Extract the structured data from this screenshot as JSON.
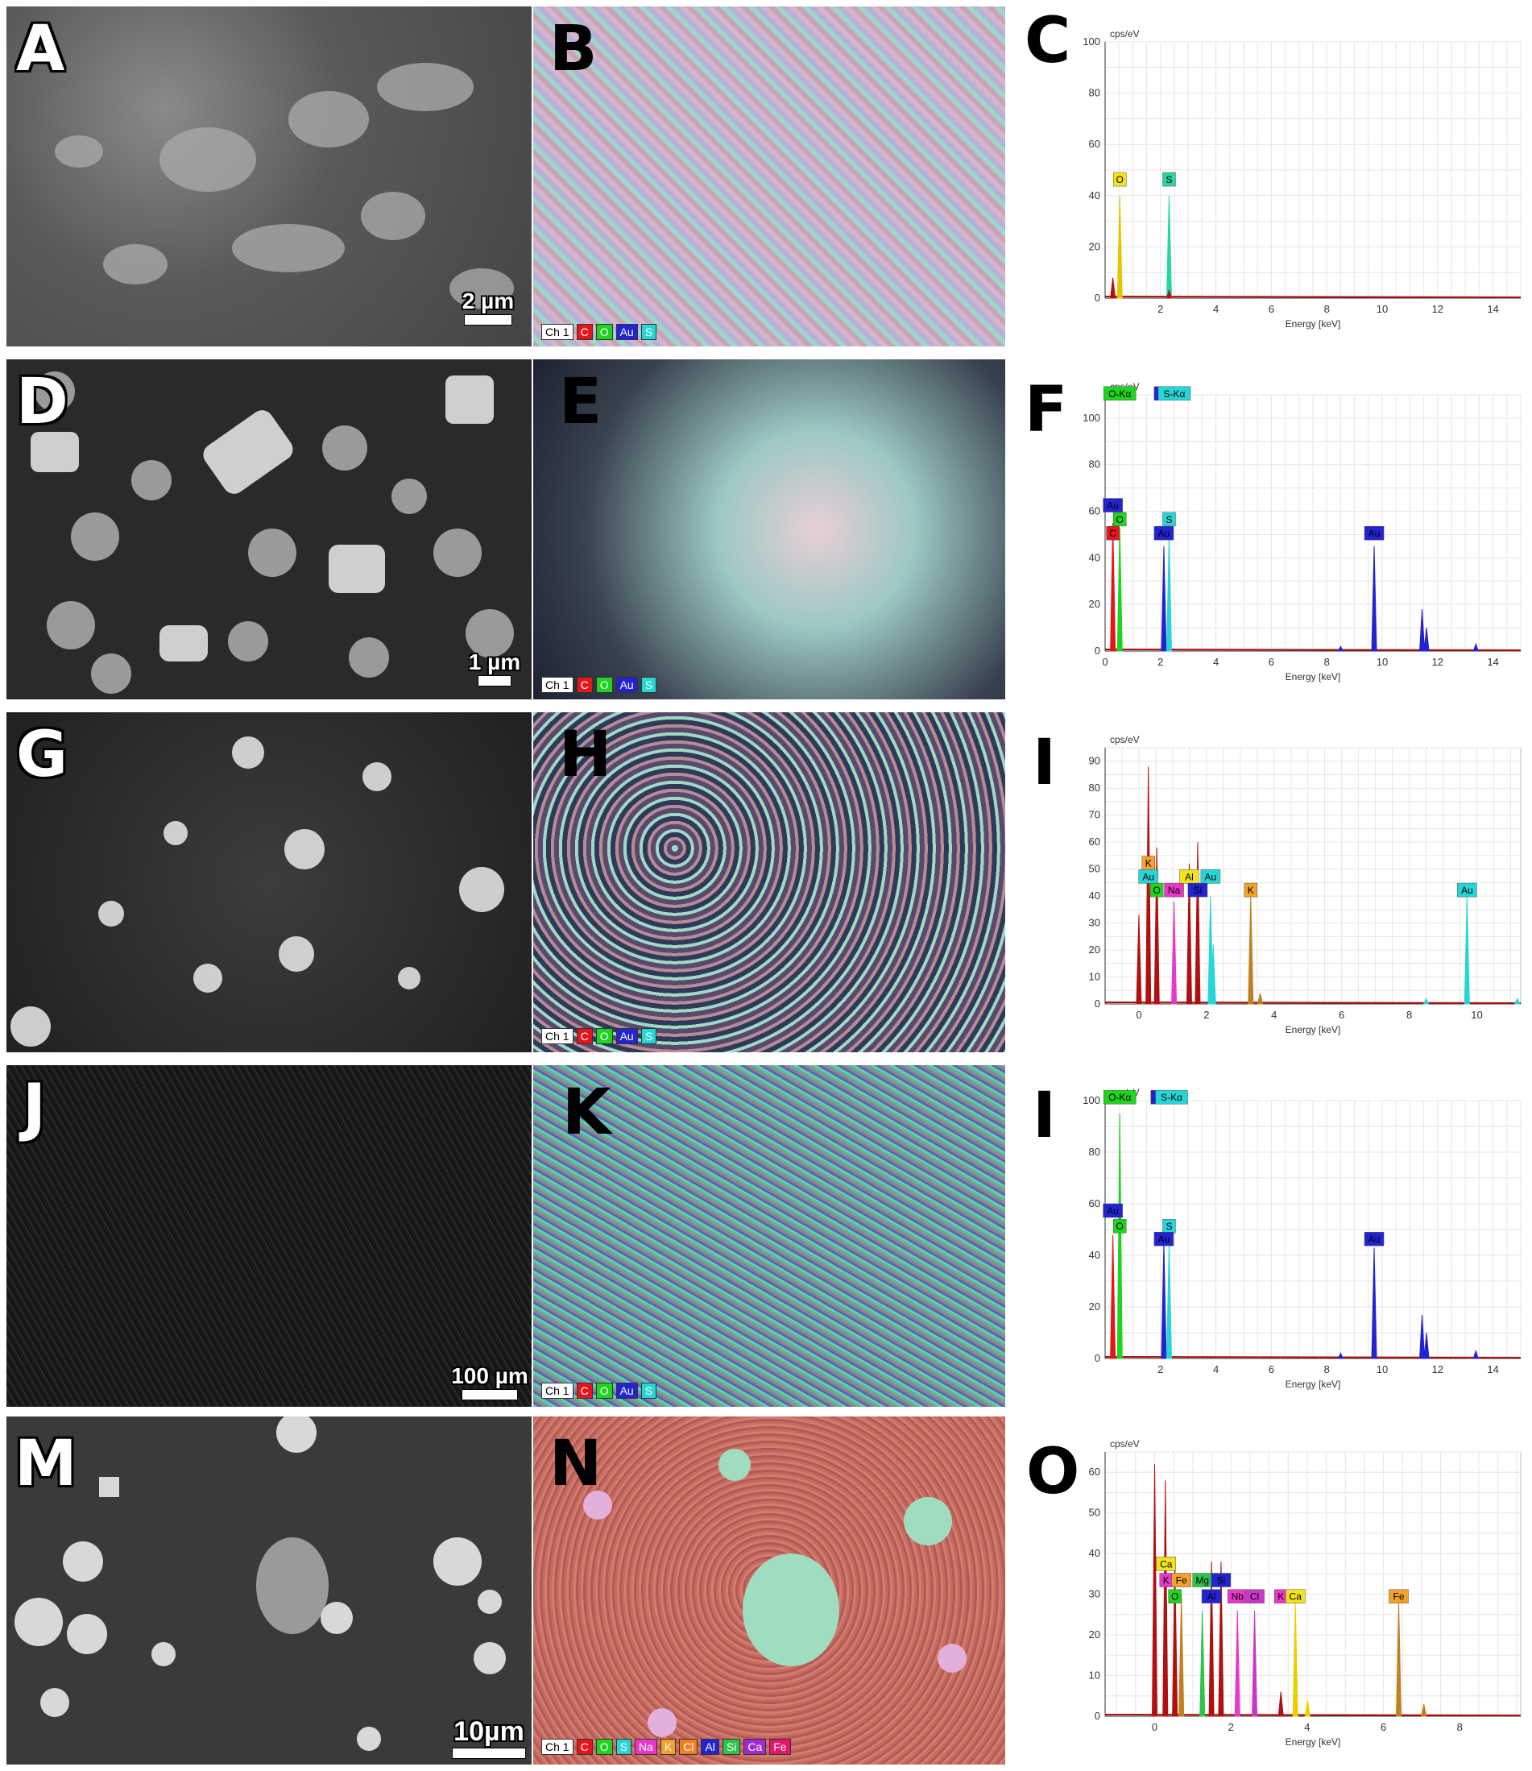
{
  "rows": [
    {
      "sem_label": "A",
      "map_label": "B",
      "spec_label": "C",
      "scale_text": "2 µm",
      "legend": [
        {
          "t": "Ch 1",
          "c": "#ffffff"
        },
        {
          "t": "C",
          "c": "#e8141b"
        },
        {
          "t": "O",
          "c": "#1ed41e"
        },
        {
          "t": "Au",
          "c": "#2323d2"
        },
        {
          "t": "S",
          "c": "#26d6d6"
        }
      ]
    },
    {
      "sem_label": "D",
      "map_label": "E",
      "spec_label": "F",
      "scale_text": "1 µm",
      "legend": [
        {
          "t": "Ch 1",
          "c": "#ffffff"
        },
        {
          "t": "C",
          "c": "#e8141b"
        },
        {
          "t": "O",
          "c": "#1ed41e"
        },
        {
          "t": "Au",
          "c": "#2323d2"
        },
        {
          "t": "S",
          "c": "#26d6d6"
        }
      ]
    },
    {
      "sem_label": "G",
      "map_label": "H",
      "spec_label": "I",
      "scale_text": "",
      "legend": [
        {
          "t": "Ch 1",
          "c": "#ffffff"
        },
        {
          "t": "C",
          "c": "#e8141b"
        },
        {
          "t": "O",
          "c": "#1ed41e"
        },
        {
          "t": "Au",
          "c": "#2323d2"
        },
        {
          "t": "S",
          "c": "#26d6d6"
        }
      ]
    },
    {
      "sem_label": "J",
      "map_label": "K",
      "spec_label": "I",
      "scale_text": "100 µm",
      "legend": [
        {
          "t": "Ch 1",
          "c": "#ffffff"
        },
        {
          "t": "C",
          "c": "#e8141b"
        },
        {
          "t": "O",
          "c": "#1ed41e"
        },
        {
          "t": "Au",
          "c": "#2323d2"
        },
        {
          "t": "S",
          "c": "#26d6d6"
        }
      ]
    },
    {
      "sem_label": "M",
      "map_label": "N",
      "spec_label": "O",
      "scale_text": "10µm",
      "legend": [
        {
          "t": "Ch 1",
          "c": "#ffffff"
        },
        {
          "t": "C",
          "c": "#e8141b"
        },
        {
          "t": "O",
          "c": "#1ed41e"
        },
        {
          "t": "S",
          "c": "#26d6d6"
        },
        {
          "t": "Na",
          "c": "#e838c8"
        },
        {
          "t": "K",
          "c": "#f3a22a"
        },
        {
          "t": "Cl",
          "c": "#f08020"
        },
        {
          "t": "Al",
          "c": "#2323d2"
        },
        {
          "t": "Si",
          "c": "#2ec44a"
        },
        {
          "t": "Ca",
          "c": "#a02ad0"
        },
        {
          "t": "Fe",
          "c": "#e8146a"
        }
      ]
    }
  ],
  "chart_data": [
    {
      "type": "line",
      "panel": "C",
      "ylabel": "cps/eV",
      "xlabel": "Energy [keV]",
      "xlim": [
        0,
        15
      ],
      "ylim": [
        0,
        100
      ],
      "xticks": [
        2,
        4,
        6,
        8,
        10,
        12,
        14
      ],
      "yticks": [
        0,
        20,
        40,
        60,
        80,
        100
      ],
      "peaks": [
        {
          "x": 0.28,
          "y": 8,
          "color": "#b01010"
        },
        {
          "x": 0.53,
          "y": 40,
          "color": "#e8c400"
        },
        {
          "x": 2.31,
          "y": 40,
          "color": "#26d6a0"
        },
        {
          "x": 2.31,
          "y": 3,
          "color": "#b01010"
        }
      ],
      "tags": [
        {
          "text": "O",
          "x": 0.53,
          "y": 44,
          "color": "#f3e41a"
        },
        {
          "text": "S",
          "x": 2.31,
          "y": 44,
          "color": "#26d6a0"
        }
      ]
    },
    {
      "type": "line",
      "panel": "F",
      "ylabel": "cps/eV",
      "xlabel": "Energy [keV]",
      "xlim": [
        0,
        15
      ],
      "ylim": [
        0,
        110
      ],
      "xticks": [
        0,
        2,
        4,
        6,
        8,
        10,
        12,
        14
      ],
      "yticks": [
        0,
        20,
        40,
        60,
        80,
        100
      ],
      "peaks": [
        {
          "x": 0.28,
          "y": 55,
          "color": "#e8141b"
        },
        {
          "x": 0.53,
          "y": 53,
          "color": "#1ed41e"
        },
        {
          "x": 2.12,
          "y": 45,
          "color": "#2323d2"
        },
        {
          "x": 2.31,
          "y": 50,
          "color": "#26d6d6"
        },
        {
          "x": 9.71,
          "y": 45,
          "color": "#2323d2"
        },
        {
          "x": 11.44,
          "y": 18,
          "color": "#2323d2"
        },
        {
          "x": 11.6,
          "y": 10,
          "color": "#2323d2"
        },
        {
          "x": 13.38,
          "y": 3,
          "color": "#2323d2"
        },
        {
          "x": 8.5,
          "y": 2,
          "color": "#2323d2"
        }
      ],
      "tags": [
        {
          "text": "O-Kα",
          "x": 0.53,
          "y": 108,
          "color": "#1ed41e"
        },
        {
          "text": "Au",
          "x": 2.12,
          "y": 108,
          "color": "#2323d2"
        },
        {
          "text": "S-Kα",
          "x": 2.5,
          "y": 108,
          "color": "#26d6d6"
        },
        {
          "text": "Au",
          "x": 0.28,
          "y": 60,
          "color": "#2323d2"
        },
        {
          "text": "O",
          "x": 0.53,
          "y": 54,
          "color": "#1ed41e"
        },
        {
          "text": "C",
          "x": 0.28,
          "y": 48,
          "color": "#e8141b"
        },
        {
          "text": "S",
          "x": 2.31,
          "y": 54,
          "color": "#26d6d6"
        },
        {
          "text": "Au",
          "x": 2.12,
          "y": 48,
          "color": "#2323d2"
        },
        {
          "text": "Au",
          "x": 9.71,
          "y": 48,
          "color": "#2323d2"
        }
      ]
    },
    {
      "type": "line",
      "panel": "I",
      "ylabel": "cps/eV",
      "xlabel": "Energy [keV]",
      "xlim": [
        -1,
        11.3
      ],
      "ylim": [
        0,
        95
      ],
      "xticks": [
        0,
        2,
        4,
        6,
        8,
        10
      ],
      "yticks": [
        0,
        10,
        20,
        30,
        40,
        50,
        60,
        70,
        80,
        90
      ],
      "peaks": [
        {
          "x": 0.0,
          "y": 33,
          "color": "#b01010"
        },
        {
          "x": 0.28,
          "y": 88,
          "color": "#b01010"
        },
        {
          "x": 0.53,
          "y": 58,
          "color": "#b01010"
        },
        {
          "x": 1.04,
          "y": 38,
          "color": "#e838c8"
        },
        {
          "x": 1.49,
          "y": 52,
          "color": "#b01010"
        },
        {
          "x": 1.74,
          "y": 60,
          "color": "#b01010"
        },
        {
          "x": 2.12,
          "y": 40,
          "color": "#26d6d6"
        },
        {
          "x": 2.2,
          "y": 22,
          "color": "#26d6d6"
        },
        {
          "x": 3.31,
          "y": 40,
          "color": "#c08020"
        },
        {
          "x": 3.59,
          "y": 4,
          "color": "#c08020"
        },
        {
          "x": 9.71,
          "y": 40,
          "color": "#26d6d6"
        },
        {
          "x": 8.5,
          "y": 2,
          "color": "#26d6d6"
        },
        {
          "x": 11.2,
          "y": 2,
          "color": "#26d6d6"
        }
      ],
      "tags": [
        {
          "text": "K",
          "x": 0.28,
          "y": 50,
          "color": "#f3a22a"
        },
        {
          "text": "Au",
          "x": 0.28,
          "y": 45,
          "color": "#26d6d6"
        },
        {
          "text": "O",
          "x": 0.53,
          "y": 40,
          "color": "#1ed41e"
        },
        {
          "text": "Na",
          "x": 1.04,
          "y": 40,
          "color": "#e838c8"
        },
        {
          "text": "Al",
          "x": 1.49,
          "y": 45,
          "color": "#f3e41a"
        },
        {
          "text": "Au",
          "x": 2.12,
          "y": 45,
          "color": "#26d6d6"
        },
        {
          "text": "Si",
          "x": 1.74,
          "y": 40,
          "color": "#2323d2"
        },
        {
          "text": "K",
          "x": 3.31,
          "y": 40,
          "color": "#f3a22a"
        },
        {
          "text": "Au",
          "x": 9.71,
          "y": 40,
          "color": "#26d6d6"
        }
      ]
    },
    {
      "type": "line",
      "panel": "I",
      "ylabel": "cps/eV",
      "xlabel": "Energy [keV]",
      "xlim": [
        0,
        15
      ],
      "ylim": [
        0,
        100
      ],
      "xticks": [
        2,
        4,
        6,
        8,
        10,
        12,
        14
      ],
      "yticks": [
        0,
        20,
        40,
        60,
        80,
        100
      ],
      "peaks": [
        {
          "x": 0.28,
          "y": 48,
          "color": "#e8141b"
        },
        {
          "x": 0.53,
          "y": 95,
          "color": "#1ed41e"
        },
        {
          "x": 2.12,
          "y": 45,
          "color": "#2323d2"
        },
        {
          "x": 2.31,
          "y": 45,
          "color": "#26d6d6"
        },
        {
          "x": 9.71,
          "y": 43,
          "color": "#2323d2"
        },
        {
          "x": 11.44,
          "y": 17,
          "color": "#2323d2"
        },
        {
          "x": 11.6,
          "y": 10,
          "color": "#2323d2"
        },
        {
          "x": 13.38,
          "y": 3,
          "color": "#2323d2"
        },
        {
          "x": 8.5,
          "y": 2,
          "color": "#2323d2"
        }
      ],
      "tags": [
        {
          "text": "O-Kα",
          "x": 0.53,
          "y": 99,
          "color": "#1ed41e"
        },
        {
          "text": "Au",
          "x": 2.0,
          "y": 99,
          "color": "#2323d2"
        },
        {
          "text": "S-Kα",
          "x": 2.4,
          "y": 99,
          "color": "#26d6d6"
        },
        {
          "text": "Au",
          "x": 0.28,
          "y": 55,
          "color": "#2323d2"
        },
        {
          "text": "O",
          "x": 0.53,
          "y": 49,
          "color": "#1ed41e"
        },
        {
          "text": "S",
          "x": 2.31,
          "y": 49,
          "color": "#26d6d6"
        },
        {
          "text": "Au",
          "x": 2.12,
          "y": 44,
          "color": "#2323d2"
        },
        {
          "text": "Au",
          "x": 9.71,
          "y": 44,
          "color": "#2323d2"
        }
      ]
    },
    {
      "type": "line",
      "panel": "O",
      "ylabel": "cps/eV",
      "xlabel": "Energy [keV]",
      "xlim": [
        -1.3,
        9.6
      ],
      "ylim": [
        0,
        65
      ],
      "xticks": [
        0,
        2,
        4,
        6,
        8
      ],
      "yticks": [
        0,
        10,
        20,
        30,
        40,
        50,
        60
      ],
      "peaks": [
        {
          "x": 0.0,
          "y": 62,
          "color": "#b01010"
        },
        {
          "x": 0.28,
          "y": 58,
          "color": "#b01010"
        },
        {
          "x": 0.53,
          "y": 38,
          "color": "#b01010"
        },
        {
          "x": 0.7,
          "y": 30,
          "color": "#c08020"
        },
        {
          "x": 1.25,
          "y": 26,
          "color": "#2ec44a"
        },
        {
          "x": 1.49,
          "y": 38,
          "color": "#b01010"
        },
        {
          "x": 1.74,
          "y": 38,
          "color": "#b01010"
        },
        {
          "x": 2.17,
          "y": 26,
          "color": "#e838c8"
        },
        {
          "x": 2.62,
          "y": 26,
          "color": "#c838c8"
        },
        {
          "x": 3.31,
          "y": 6,
          "color": "#b01010"
        },
        {
          "x": 3.69,
          "y": 28,
          "color": "#e8d000"
        },
        {
          "x": 4.01,
          "y": 4,
          "color": "#e8d000"
        },
        {
          "x": 6.4,
          "y": 28,
          "color": "#c08020"
        },
        {
          "x": 7.06,
          "y": 3,
          "color": "#c08020"
        }
      ],
      "tags": [
        {
          "text": "Ca",
          "x": 0.3,
          "y": 36,
          "color": "#f3e41a"
        },
        {
          "text": "K",
          "x": 0.3,
          "y": 32,
          "color": "#e838c8"
        },
        {
          "text": "Fe",
          "x": 0.7,
          "y": 32,
          "color": "#f3a22a"
        },
        {
          "text": "O",
          "x": 0.53,
          "y": 28,
          "color": "#1ed41e"
        },
        {
          "text": "Mg",
          "x": 1.25,
          "y": 32,
          "color": "#2ec44a"
        },
        {
          "text": "Si",
          "x": 1.74,
          "y": 32,
          "color": "#2323d2"
        },
        {
          "text": "Al",
          "x": 1.49,
          "y": 28,
          "color": "#2323d2"
        },
        {
          "text": "Nb",
          "x": 2.17,
          "y": 28,
          "color": "#e838c8"
        },
        {
          "text": "Cl",
          "x": 2.62,
          "y": 28,
          "color": "#c838c8"
        },
        {
          "text": "K",
          "x": 3.31,
          "y": 28,
          "color": "#e838c8"
        },
        {
          "text": "Ca",
          "x": 3.69,
          "y": 28,
          "color": "#f3e41a"
        },
        {
          "text": "Fe",
          "x": 6.4,
          "y": 28,
          "color": "#f3a22a"
        }
      ]
    }
  ]
}
